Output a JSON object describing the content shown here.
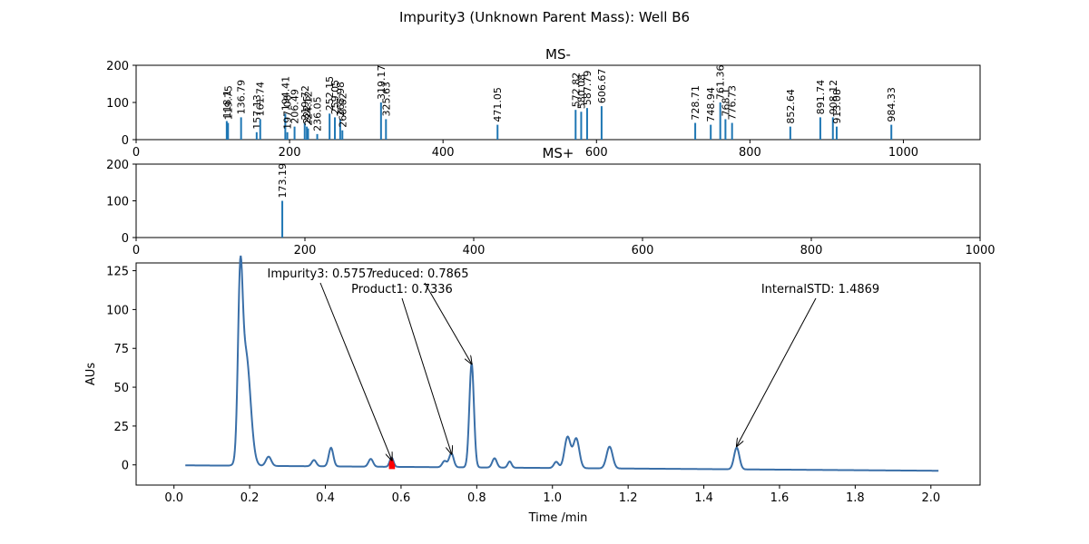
{
  "figure": {
    "title": "Impurity3 (Unknown Parent Mass): Well B6"
  },
  "chart_data": [
    {
      "type": "bar",
      "title": "MS-",
      "xlim": [
        0,
        1100
      ],
      "ylim": [
        0,
        200
      ],
      "xticks": [
        0,
        200,
        400,
        600,
        800,
        1000
      ],
      "yticks": [
        0,
        100,
        200
      ],
      "color": "#1f77b4",
      "peaks": [
        {
          "x": 118.1,
          "y": 50,
          "label": "118.1"
        },
        {
          "x": 119.8,
          "y": 45,
          "label": "119.75"
        },
        {
          "x": 136.79,
          "y": 60,
          "label": "136.79"
        },
        {
          "x": 157.13,
          "y": 20,
          "label": "157.13"
        },
        {
          "x": 161.74,
          "y": 55,
          "label": "161.74"
        },
        {
          "x": 194.41,
          "y": 70,
          "label": "194.41"
        },
        {
          "x": 197.08,
          "y": 20,
          "label": "197.08"
        },
        {
          "x": 206.49,
          "y": 35,
          "label": "206.49"
        },
        {
          "x": 219.72,
          "y": 45,
          "label": "219.72"
        },
        {
          "x": 222.5,
          "y": 35,
          "label": "222.5"
        },
        {
          "x": 224.12,
          "y": 30,
          "label": "224.12"
        },
        {
          "x": 236.05,
          "y": 15,
          "label": "236.05"
        },
        {
          "x": 252.15,
          "y": 70,
          "label": "252.15"
        },
        {
          "x": 259.05,
          "y": 60,
          "label": "259.05"
        },
        {
          "x": 265.98,
          "y": 55,
          "label": "265.98"
        },
        {
          "x": 268.82,
          "y": 25,
          "label": "268.82"
        },
        {
          "x": 319.17,
          "y": 100,
          "label": "319.17"
        },
        {
          "x": 325.63,
          "y": 55,
          "label": "325.63"
        },
        {
          "x": 471.05,
          "y": 40,
          "label": "471.05"
        },
        {
          "x": 572.82,
          "y": 80,
          "label": "572.82"
        },
        {
          "x": 580.08,
          "y": 75,
          "label": "580.08"
        },
        {
          "x": 587.79,
          "y": 85,
          "label": "587.79"
        },
        {
          "x": 606.67,
          "y": 90,
          "label": "606.67"
        },
        {
          "x": 728.71,
          "y": 45,
          "label": "728.71"
        },
        {
          "x": 748.94,
          "y": 40,
          "label": "748.94"
        },
        {
          "x": 761.36,
          "y": 100,
          "label": "761.36"
        },
        {
          "x": 768.1,
          "y": 55,
          "label": "768.1"
        },
        {
          "x": 776.73,
          "y": 45,
          "label": "776.73"
        },
        {
          "x": 852.64,
          "y": 35,
          "label": "852.64"
        },
        {
          "x": 891.74,
          "y": 60,
          "label": "891.74"
        },
        {
          "x": 908.12,
          "y": 60,
          "label": "908.12"
        },
        {
          "x": 913.08,
          "y": 35,
          "label": "913.08"
        },
        {
          "x": 984.33,
          "y": 40,
          "label": "984.33"
        }
      ]
    },
    {
      "type": "bar",
      "title": "MS+",
      "xlim": [
        0,
        1000
      ],
      "ylim": [
        0,
        200
      ],
      "xticks": [
        0,
        200,
        400,
        600,
        800,
        1000
      ],
      "yticks": [
        0,
        100,
        200
      ],
      "color": "#1f77b4",
      "peaks": [
        {
          "x": 173.19,
          "y": 100,
          "label": "173.19"
        }
      ]
    },
    {
      "type": "line",
      "xlabel": "Time /min",
      "ylabel": "AUs",
      "xlim": [
        -0.1,
        2.13
      ],
      "ylim": [
        -13,
        130
      ],
      "xticks": [
        0.0,
        0.2,
        0.4,
        0.6,
        0.8,
        1.0,
        1.2,
        1.4,
        1.6,
        1.8,
        2.0
      ],
      "xtick_labels": [
        "0.0",
        "0.2",
        "0.4",
        "0.6",
        "0.8",
        "1.0",
        "1.2",
        "1.4",
        "1.6",
        "1.8",
        "2.0"
      ],
      "yticks": [
        0,
        25,
        50,
        75,
        100,
        125
      ],
      "color": "#3a6fa8",
      "baseline": {
        "start": -0.3,
        "end": -3.8,
        "t_start": 0.03,
        "t_end": 2.02
      },
      "peaks": [
        {
          "t": 0.175,
          "h": 100,
          "w": 0.006
        },
        {
          "t": 0.19,
          "h": 72,
          "w": 0.012
        },
        {
          "t": 0.25,
          "h": 6,
          "w": 0.007
        },
        {
          "t": 0.37,
          "h": 4,
          "w": 0.006
        },
        {
          "t": 0.415,
          "h": 12,
          "w": 0.006
        },
        {
          "t": 0.52,
          "h": 5,
          "w": 0.006
        },
        {
          "t": 0.575,
          "h": 6,
          "w": 0.005
        },
        {
          "t": 0.715,
          "h": 4,
          "w": 0.006
        },
        {
          "t": 0.733,
          "h": 9,
          "w": 0.006
        },
        {
          "t": 0.7865,
          "h": 67,
          "w": 0.006
        },
        {
          "t": 0.847,
          "h": 6,
          "w": 0.006
        },
        {
          "t": 0.887,
          "h": 4,
          "w": 0.005
        },
        {
          "t": 1.01,
          "h": 4,
          "w": 0.006
        },
        {
          "t": 1.04,
          "h": 20,
          "w": 0.008
        },
        {
          "t": 1.063,
          "h": 19,
          "w": 0.008
        },
        {
          "t": 1.151,
          "h": 14,
          "w": 0.008
        },
        {
          "t": 1.4869,
          "h": 14,
          "w": 0.007
        }
      ],
      "highlight": {
        "t0": 0.568,
        "t1": 0.584,
        "color": "#ff0000"
      },
      "annotations": [
        {
          "text": "Impurity3: 0.5757",
          "x": 0.5757,
          "y": 3
        },
        {
          "text": "Product1: 0.7336",
          "x": 0.7336,
          "y": 7
        },
        {
          "text": "reduced: 0.7865",
          "x": 0.7865,
          "y": 65
        },
        {
          "text": "InternalSTD: 1.4869",
          "x": 1.4869,
          "y": 12
        }
      ]
    }
  ]
}
